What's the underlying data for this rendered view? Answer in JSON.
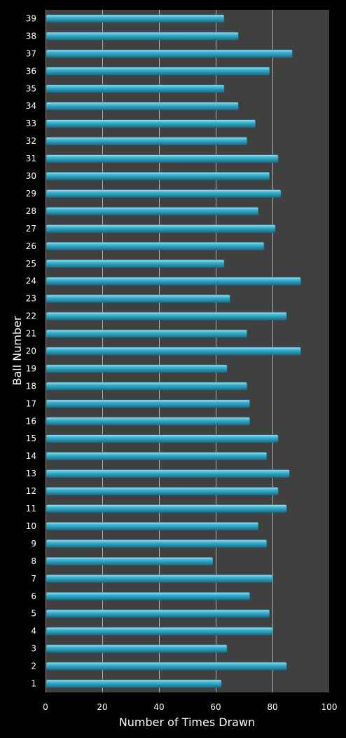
{
  "colors": {
    "background": "#000000",
    "plot_area": "#404040",
    "bar_fill": "#3ab4d4",
    "bar_highlight": "#9ee4f4",
    "bar_shadow": "#1a6e86",
    "gridline": "#b0b0b0",
    "text": "#ffffff"
  },
  "chart_data": {
    "type": "bar",
    "orientation": "horizontal",
    "xlabel": "Number of Times Drawn",
    "ylabel": "Ball Number",
    "xlim": [
      0,
      100
    ],
    "x_ticks": [
      0,
      20,
      40,
      60,
      80,
      100
    ],
    "grid": "vertical gridlines at 20, 40, 60, 80",
    "legend": "none",
    "categories": [
      "1",
      "2",
      "3",
      "4",
      "5",
      "6",
      "7",
      "8",
      "9",
      "10",
      "11",
      "12",
      "13",
      "14",
      "15",
      "16",
      "17",
      "18",
      "19",
      "20",
      "21",
      "22",
      "23",
      "24",
      "25",
      "26",
      "27",
      "28",
      "29",
      "30",
      "31",
      "32",
      "33",
      "34",
      "35",
      "36",
      "37",
      "38",
      "39"
    ],
    "values": [
      62,
      85,
      64,
      80,
      79,
      72,
      80,
      59,
      78,
      75,
      85,
      82,
      86,
      78,
      82,
      72,
      72,
      71,
      64,
      90,
      71,
      85,
      65,
      90,
      63,
      77,
      81,
      75,
      83,
      79,
      82,
      71,
      74,
      68,
      63,
      79,
      87,
      68,
      63
    ]
  }
}
